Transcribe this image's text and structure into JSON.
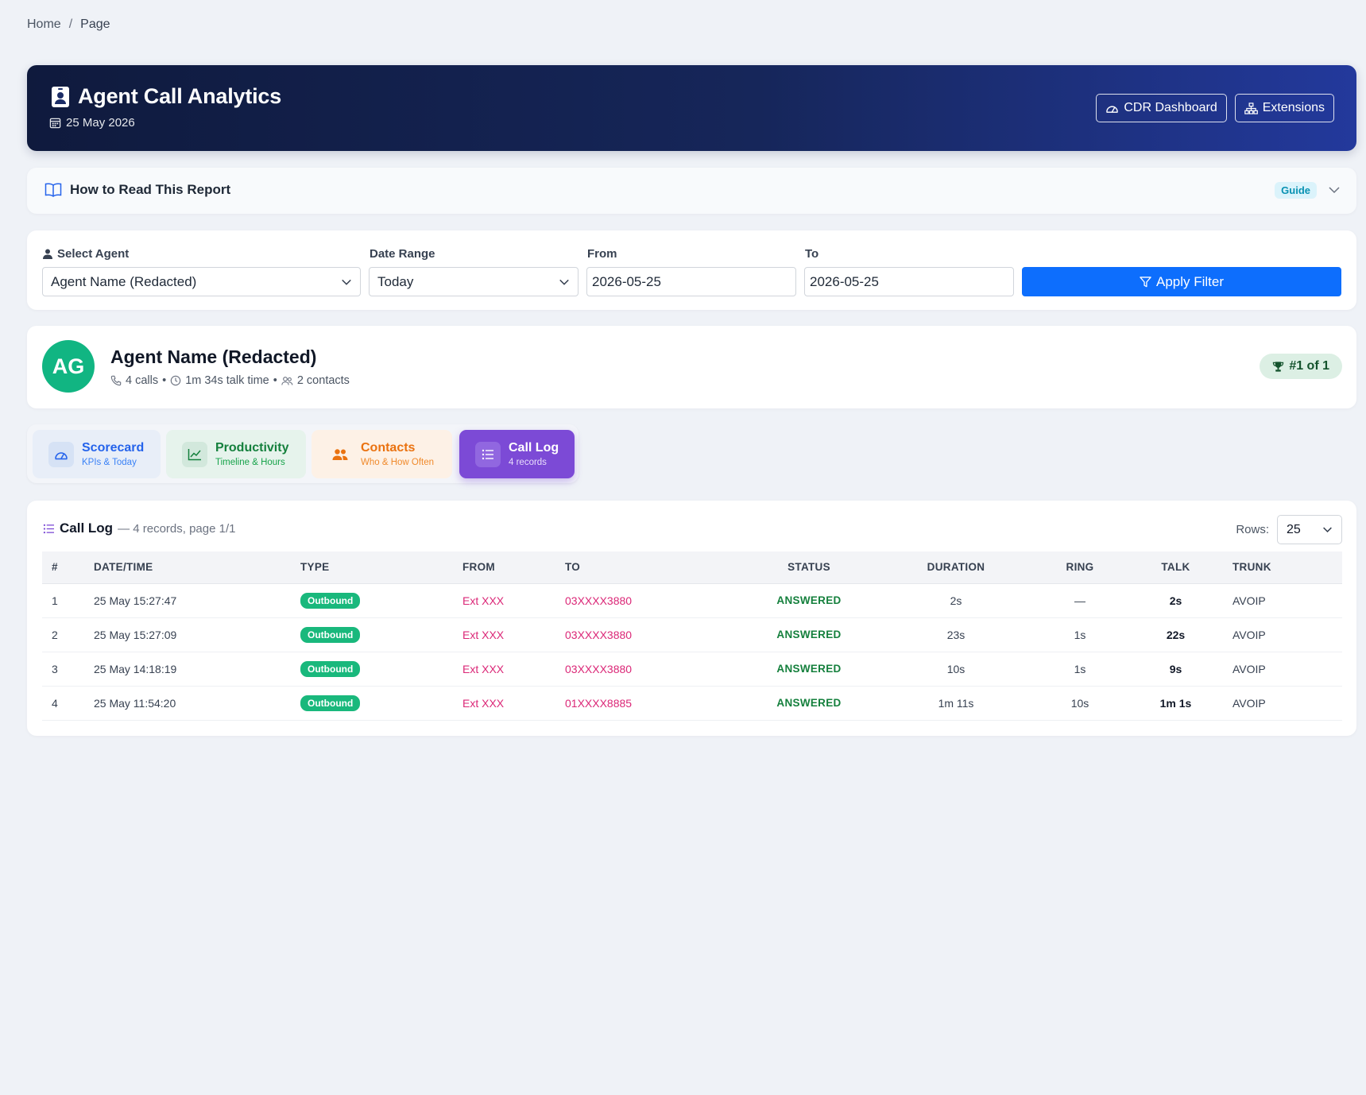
{
  "breadcrumb": {
    "home": "Home",
    "sep": "/",
    "current": "Page"
  },
  "header": {
    "title": "Agent Call Analytics",
    "date": "25 May 2026",
    "cdr_button": "CDR Dashboard",
    "extensions_button": "Extensions"
  },
  "guide": {
    "title": "How to Read This Report",
    "badge": "Guide"
  },
  "filters": {
    "agent_label": "Select Agent",
    "agent_value": "Agent Name (Redacted)",
    "range_label": "Date Range",
    "range_value": "Today",
    "from_label": "From",
    "from_value": "2026-05-25",
    "to_label": "To",
    "to_value": "2026-05-25",
    "apply_label": "Apply Filter"
  },
  "agent": {
    "initials": "AG",
    "name": "Agent Name (Redacted)",
    "calls": "4 calls",
    "talk_time": "1m 34s talk time",
    "contacts": "2 contacts",
    "dot": "•",
    "rank": "#1 of 1"
  },
  "tabs": [
    {
      "label": "Scorecard",
      "sub": "KPIs & Today"
    },
    {
      "label": "Productivity",
      "sub": "Timeline & Hours"
    },
    {
      "label": "Contacts",
      "sub": "Who & How Often"
    },
    {
      "label": "Call Log",
      "sub": "4 records"
    }
  ],
  "call_log": {
    "title": "Call Log",
    "summary": "— 4 records, page 1/1",
    "rows_label": "Rows:",
    "rows_value": "25",
    "columns": [
      "#",
      "DATE/TIME",
      "TYPE",
      "FROM",
      "TO",
      "STATUS",
      "DURATION",
      "RING",
      "TALK",
      "TRUNK"
    ],
    "rows": [
      {
        "num": "1",
        "datetime": "25 May 15:27:47",
        "type": "Outbound",
        "from": "Ext XXX",
        "to": "03XXXX3880",
        "status": "ANSWERED",
        "duration": "2s",
        "ring": "—",
        "talk": "2s",
        "trunk": "AVOIP"
      },
      {
        "num": "2",
        "datetime": "25 May 15:27:09",
        "type": "Outbound",
        "from": "Ext XXX",
        "to": "03XXXX3880",
        "status": "ANSWERED",
        "duration": "23s",
        "ring": "1s",
        "talk": "22s",
        "trunk": "AVOIP"
      },
      {
        "num": "3",
        "datetime": "25 May 14:18:19",
        "type": "Outbound",
        "from": "Ext XXX",
        "to": "03XXXX3880",
        "status": "ANSWERED",
        "duration": "10s",
        "ring": "1s",
        "talk": "9s",
        "trunk": "AVOIP"
      },
      {
        "num": "4",
        "datetime": "25 May 11:54:20",
        "type": "Outbound",
        "from": "Ext XXX",
        "to": "01XXXX8885",
        "status": "ANSWERED",
        "duration": "1m 11s",
        "ring": "10s",
        "talk": "1m 1s",
        "trunk": "AVOIP"
      }
    ]
  },
  "colors": {
    "header_dark": "#0f1a3d",
    "header_light": "#23399c",
    "primary": "#0d6efd",
    "avatar": "#11b582",
    "outbound_pill": "#19b87c",
    "number_pink": "#db2777",
    "answered_green": "#15803d",
    "call_log_tab": "#7c4ad6"
  },
  "icons": {
    "title_icon": "id-badge-icon",
    "date_icon": "calendar-icon",
    "cdr_icon": "speedometer-icon",
    "extensions_icon": "hierarchy-icon",
    "guide_icon": "book-icon",
    "agent_icon": "person-icon",
    "filter_icon": "funnel-icon",
    "phone_icon": "phone-icon",
    "clock_icon": "clock-icon",
    "people_icon": "people-icon",
    "rank_icon": "trophy-icon"
  }
}
